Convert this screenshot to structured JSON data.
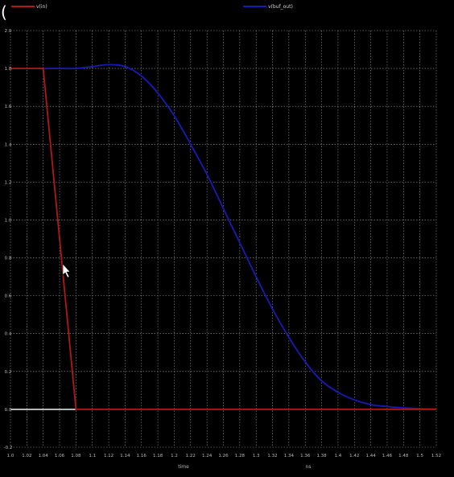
{
  "app_label": "(",
  "chart_data": {
    "type": "line",
    "title": "",
    "xlabel": "time",
    "xunit": "ns",
    "ylabel": "",
    "xlim": [
      1.0,
      1.52
    ],
    "ylim": [
      -0.2,
      2.0
    ],
    "x_tick_labels": [
      "1.0",
      "1.02",
      "1.04",
      "1.06",
      "1.08",
      "1.1",
      "1.12",
      "1.14",
      "1.16",
      "1.18",
      "1.2",
      "1.22",
      "1.24",
      "1.26",
      "1.28",
      "1.3",
      "1.32",
      "1.34",
      "1.36",
      "1.38",
      "1.4",
      "1.42",
      "1.44",
      "1.46",
      "1.48",
      "1.5",
      "1.52"
    ],
    "y_tick_labels": [
      "2.0",
      "1.8",
      "1.6",
      "1.4",
      "1.2",
      "1.0",
      "0.8",
      "0.6",
      "0.4",
      "0.2",
      "0.0",
      "-0.2"
    ],
    "grid": true,
    "legend_position": "top",
    "series": [
      {
        "name": "v(in)",
        "color": "#b21818",
        "x": [
          1.0,
          1.04,
          1.08,
          1.52
        ],
        "y": [
          1.8,
          1.8,
          0.0,
          0.0
        ]
      },
      {
        "name": "v(buf_out)",
        "color": "#1a1ab8",
        "x": [
          1.04,
          1.06,
          1.08,
          1.1,
          1.12,
          1.14,
          1.16,
          1.18,
          1.2,
          1.22,
          1.24,
          1.26,
          1.28,
          1.3,
          1.32,
          1.34,
          1.36,
          1.38,
          1.4,
          1.42,
          1.44,
          1.46,
          1.48,
          1.5,
          1.52
        ],
        "y": [
          1.8,
          1.8,
          1.8,
          1.81,
          1.82,
          1.81,
          1.76,
          1.67,
          1.55,
          1.4,
          1.24,
          1.06,
          0.88,
          0.7,
          0.53,
          0.38,
          0.25,
          0.15,
          0.09,
          0.05,
          0.025,
          0.015,
          0.008,
          0.004,
          0.002
        ]
      }
    ],
    "baseline": {
      "color": "#e0e0e0",
      "x": [
        1.0,
        1.08
      ],
      "y": [
        0.0,
        0.0
      ]
    }
  }
}
